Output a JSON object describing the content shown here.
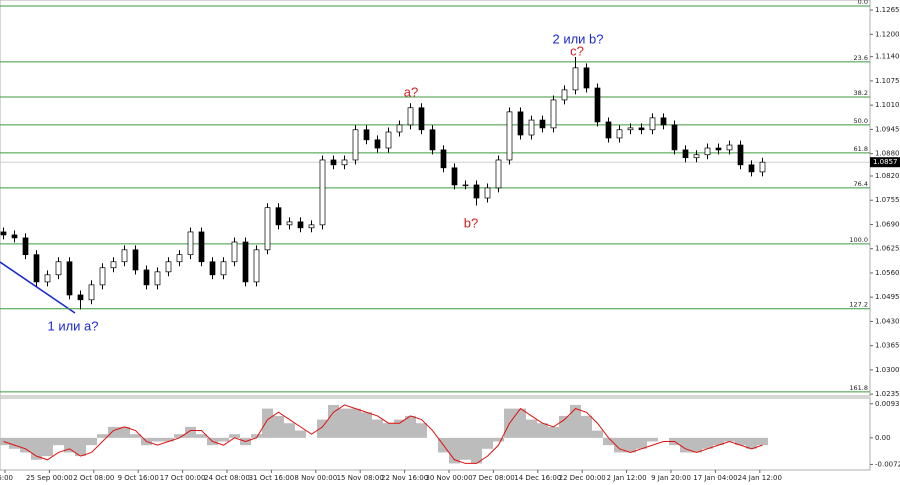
{
  "chart_data": {
    "type": "candlestick",
    "open": [
      1.067,
      1.0662,
      1.0654,
      1.0609,
      1.0536,
      1.0555,
      1.059,
      1.0501,
      1.0488,
      1.0528,
      1.0574,
      1.059,
      1.0622,
      1.0568,
      1.0528,
      1.0563,
      1.059,
      1.0609,
      1.067,
      1.059,
      1.0555,
      1.059,
      1.0643,
      1.0536,
      1.0622,
      1.0735,
      1.0689,
      1.0697,
      1.0681,
      1.0689,
      1.0863,
      1.085,
      1.0863,
      1.0944,
      1.0917,
      1.0895,
      1.0938,
      1.0957,
      1.1003,
      1.0944,
      1.089,
      1.0842,
      1.0796,
      1.0796,
      1.0761,
      1.0788,
      1.0863,
      1.0992,
      1.093,
      1.097,
      1.0949,
      1.1024,
      1.1051,
      1.111,
      1.1056,
      1.0965,
      1.0922,
      1.0944,
      1.0949,
      1.0944,
      1.0976,
      1.0957,
      1.089,
      1.0869,
      1.0877,
      1.0895,
      1.089,
      1.0903,
      1.085,
      1.0831
    ],
    "high": [
      1.0682,
      1.0674,
      1.0666,
      1.0621,
      1.0567,
      1.0602,
      1.0602,
      1.0513,
      1.054,
      1.0586,
      1.0602,
      1.0634,
      1.0634,
      1.058,
      1.0575,
      1.0602,
      1.0621,
      1.0682,
      1.0682,
      1.0602,
      1.0602,
      1.0655,
      1.0655,
      1.0634,
      1.0747,
      1.0747,
      1.0709,
      1.0709,
      1.0701,
      1.0875,
      1.0875,
      1.0875,
      1.0956,
      1.0956,
      1.0929,
      1.095,
      1.0969,
      1.1015,
      1.1015,
      1.0956,
      1.0902,
      1.0854,
      1.0808,
      1.0808,
      1.08,
      1.0875,
      1.1004,
      1.1004,
      1.0982,
      1.0982,
      1.1036,
      1.1063,
      1.1139,
      1.1122,
      1.1068,
      1.0977,
      1.0956,
      1.0961,
      1.0961,
      1.0988,
      1.0988,
      1.0969,
      1.0902,
      1.0889,
      1.0907,
      1.0907,
      1.0915,
      1.0915,
      1.0862,
      1.0869
    ],
    "low": [
      1.065,
      1.0642,
      1.0597,
      1.0524,
      1.0524,
      1.0543,
      1.0489,
      1.0462,
      1.0476,
      1.0516,
      1.0562,
      1.0578,
      1.0556,
      1.0516,
      1.0516,
      1.0551,
      1.0578,
      1.0597,
      1.0578,
      1.0543,
      1.0543,
      1.0578,
      1.0524,
      1.0524,
      1.061,
      1.0677,
      1.0677,
      1.0669,
      1.0669,
      1.0677,
      1.0838,
      1.0838,
      1.0851,
      1.0905,
      1.0883,
      1.0883,
      1.0926,
      1.0945,
      1.0932,
      1.0878,
      1.083,
      1.0784,
      1.0784,
      1.0741,
      1.0749,
      1.0776,
      1.0851,
      1.0918,
      1.0918,
      1.0937,
      1.0937,
      1.1012,
      1.1039,
      1.1044,
      1.0953,
      1.091,
      1.091,
      1.0932,
      1.0932,
      1.0932,
      1.0945,
      1.0878,
      1.0857,
      1.0857,
      1.0865,
      1.0878,
      1.0878,
      1.0838,
      1.0819,
      1.0819
    ],
    "close": [
      1.0662,
      1.0654,
      1.0609,
      1.0536,
      1.0555,
      1.059,
      1.0501,
      1.0488,
      1.0528,
      1.0574,
      1.059,
      1.0622,
      1.0568,
      1.0528,
      1.0563,
      1.059,
      1.0609,
      1.067,
      1.059,
      1.0555,
      1.059,
      1.0643,
      1.0536,
      1.0622,
      1.0735,
      1.0689,
      1.0697,
      1.0681,
      1.0689,
      1.0863,
      1.085,
      1.0863,
      1.0944,
      1.0917,
      1.0895,
      1.0938,
      1.0957,
      1.1003,
      1.0944,
      1.089,
      1.0842,
      1.0796,
      1.0796,
      1.0761,
      1.0788,
      1.0863,
      1.0992,
      1.093,
      1.097,
      1.0949,
      1.1024,
      1.1051,
      1.111,
      1.1056,
      1.0965,
      1.0922,
      1.0944,
      1.0949,
      1.0944,
      1.0976,
      1.0957,
      1.089,
      1.0869,
      1.0877,
      1.0895,
      1.089,
      1.0903,
      1.085,
      1.0831,
      1.0857
    ],
    "ylim": [
      1.023,
      1.1292
    ],
    "yticks": [
      1.1265,
      {
        "value": 1.12,
        "label": "1.1200"
      },
      {
        "value": 1.114,
        "label": "1.1140"
      },
      1.1075,
      {
        "value": 1.101,
        "label": "1.1010"
      },
      1.0945,
      {
        "value": 1.088,
        "label": "1.0880"
      },
      {
        "value": 1.082,
        "label": "1.0820"
      },
      1.0755,
      {
        "value": 1.069,
        "label": "1.0690"
      },
      1.0625,
      {
        "value": 1.056,
        "label": "1.0560"
      },
      1.0495,
      {
        "value": 1.043,
        "label": "1.0430"
      },
      1.0365,
      {
        "value": 1.03,
        "label": "1.0300"
      },
      1.0235
    ],
    "current_price": 1.0857,
    "fib_levels": [
      {
        "ratio": {
          "value": 0,
          "label": "0.0"
        },
        "price": 1.1276
      },
      {
        "ratio": 23.6,
        "price": 1.1126
      },
      {
        "ratio": 38.2,
        "price": 1.1032
      },
      {
        "ratio": {
          "value": 50,
          "label": "50.0"
        },
        "price": 1.0957
      },
      {
        "ratio": 61.8,
        "price": 1.0882
      },
      {
        "ratio": 76.4,
        "price": 1.0788
      },
      {
        "ratio": {
          "value": 100,
          "label": "100.0"
        },
        "price": 1.0638
      },
      {
        "ratio": 127.2,
        "price": 1.0464
      },
      {
        "ratio": 161.8,
        "price": 1.0241
      }
    ],
    "fib_color": "#3d9a3d",
    "x_labels": [
      "6:00",
      "25 Sep 00:00",
      "2 Oct 08:00",
      "9 Oct 16:00",
      "17 Oct 00:00",
      "24 Oct 08:00",
      "31 Oct 16:00",
      "8 Nov 00:00",
      "15 Nov 08:00",
      "22 Nov 16:00",
      "30 Nov 00:00",
      "7 Dec 08:00",
      "14 Dec 16:00",
      "22 Dec 00:00",
      "2 Jan 12:00",
      "9 Jan 20:00",
      "17 Jan 04:00",
      "24 Jan 12:00"
    ],
    "annotations": [
      "1 или a?",
      "a?",
      "b?",
      "c?",
      "2 или b?"
    ],
    "macd": {
      "histogram": [
        -0.002,
        -0.003,
        -0.004,
        -0.006,
        -0.005,
        -0.002,
        -0.004,
        -0.005,
        -0.002,
        0.001,
        0.003,
        0.003,
        0.001,
        -0.002,
        -0.001,
        -0.001,
        0.001,
        0.003,
        0.001,
        -0.002,
        -0.001,
        0.001,
        -0.002,
        0.001,
        0.008,
        0.006,
        0.004,
        0.002,
        0.0,
        0.005,
        0.009,
        0.008,
        0.008,
        0.007,
        0.005,
        0.004,
        0.005,
        0.006,
        0.004,
        0.0,
        -0.004,
        -0.007,
        -0.006,
        -0.007,
        -0.003,
        -0.001,
        0.008,
        0.008,
        0.005,
        0.004,
        0.003,
        0.006,
        0.009,
        0.006,
        0.002,
        -0.002,
        -0.004,
        -0.004,
        -0.003,
        -0.001,
        0.0,
        -0.002,
        -0.004,
        -0.004,
        -0.003,
        -0.002,
        -0.001,
        -0.002,
        -0.003,
        -0.002
      ],
      "histogram_color": "#bcbcbc",
      "signal": [
        -0.001,
        -0.002,
        -0.003,
        -0.005,
        -0.006,
        -0.004,
        -0.003,
        -0.005,
        -0.004,
        -0.001,
        0.002,
        0.003,
        0.002,
        -0.001,
        -0.002,
        -0.001,
        0.0,
        0.002,
        0.002,
        -0.001,
        -0.002,
        0.0,
        -0.001,
        0.0,
        0.005,
        0.007,
        0.005,
        0.003,
        0.001,
        0.003,
        0.007,
        0.009,
        0.008,
        0.007,
        0.006,
        0.004,
        0.004,
        0.006,
        0.005,
        0.002,
        -0.002,
        -0.006,
        -0.007,
        -0.007,
        -0.005,
        -0.002,
        0.004,
        0.008,
        0.006,
        0.004,
        0.003,
        0.005,
        0.008,
        0.007,
        0.004,
        0.0,
        -0.003,
        -0.004,
        -0.003,
        -0.002,
        -0.001,
        -0.001,
        -0.003,
        -0.004,
        -0.003,
        -0.002,
        -0.001,
        -0.002,
        -0.003,
        -0.002
      ],
      "signal_color": "#e01010",
      "ylim": [
        -0.0088,
        0.0109
      ],
      "yticks": [
        0.00932,
        {
          "value": 0,
          "label": "0.00"
        },
        -0.00728
      ]
    }
  }
}
